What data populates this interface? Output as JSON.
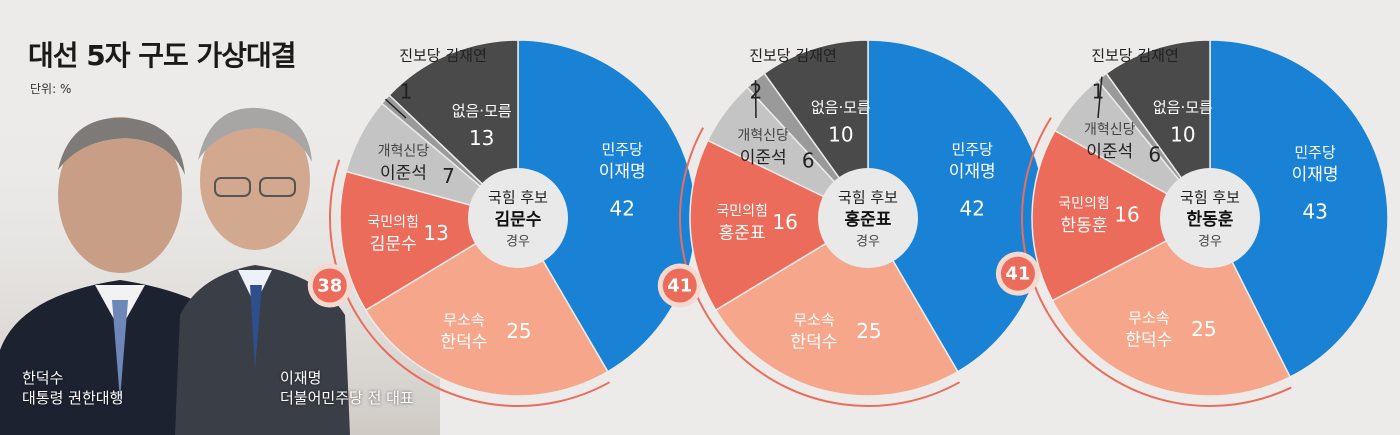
{
  "header": {
    "title": "대선 5자 구도 가상대결",
    "unit": "단위: %"
  },
  "people": [
    {
      "name": "한덕수",
      "role": "대통령 권한대행"
    },
    {
      "name": "이재명",
      "role": "더불어민주당 전 대표"
    }
  ],
  "colors": {
    "democratic": "#1a82d4",
    "independent": "#f6a68a",
    "ppp": "#ec6c5b",
    "reform": "#c4c4c4",
    "progressive": "#9a9a9a",
    "undecided": "#4a4a4a",
    "badge": "#ec6c5b",
    "center": "#e9e9e9"
  },
  "chart_data": [
    {
      "type": "pie",
      "center": {
        "line1": "국힘 후보",
        "line2": "김문수",
        "line3": "경우"
      },
      "combined_label": "38",
      "slices": [
        {
          "party": "민주당",
          "name": "이재명",
          "value": 42
        },
        {
          "party": "무소속",
          "name": "한덕수",
          "value": 25
        },
        {
          "party": "국민의힘",
          "name": "김문수",
          "value": 13
        },
        {
          "party": "개혁신당",
          "name": "이준석",
          "value": 7
        },
        {
          "party": "진보당",
          "name": "김재연",
          "value": 1
        },
        {
          "party": "없음·모름",
          "name": "",
          "value": 13
        }
      ]
    },
    {
      "type": "pie",
      "center": {
        "line1": "국힘 후보",
        "line2": "홍준표",
        "line3": "경우"
      },
      "combined_label": "41",
      "slices": [
        {
          "party": "민주당",
          "name": "이재명",
          "value": 42
        },
        {
          "party": "무소속",
          "name": "한덕수",
          "value": 25
        },
        {
          "party": "국민의힘",
          "name": "홍준표",
          "value": 16
        },
        {
          "party": "개혁신당",
          "name": "이준석",
          "value": 6
        },
        {
          "party": "진보당",
          "name": "김재연",
          "value": 2
        },
        {
          "party": "없음·모름",
          "name": "",
          "value": 10
        }
      ]
    },
    {
      "type": "pie",
      "center": {
        "line1": "국힘 후보",
        "line2": "한동훈",
        "line3": "경우"
      },
      "combined_label": "41",
      "slices": [
        {
          "party": "민주당",
          "name": "이재명",
          "value": 43
        },
        {
          "party": "무소속",
          "name": "한덕수",
          "value": 25
        },
        {
          "party": "국민의힘",
          "name": "한동훈",
          "value": 16
        },
        {
          "party": "개혁신당",
          "name": "이준석",
          "value": 6
        },
        {
          "party": "진보당",
          "name": "김재연",
          "value": 1
        },
        {
          "party": "없음·모름",
          "name": "",
          "value": 10
        }
      ]
    }
  ]
}
